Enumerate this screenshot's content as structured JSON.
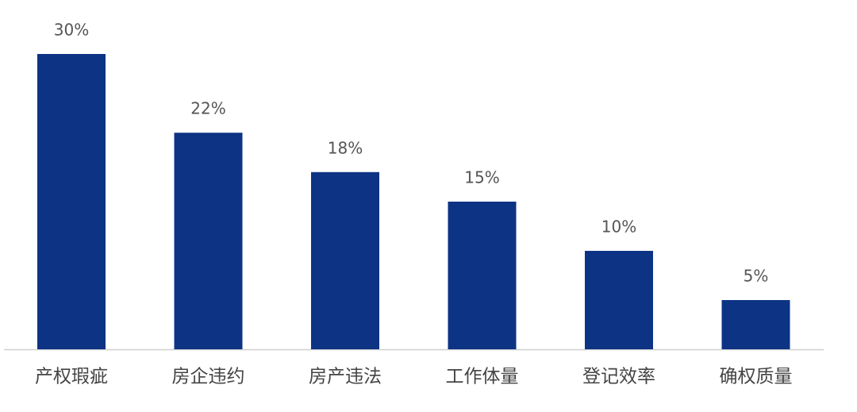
{
  "chart_data": {
    "type": "bar",
    "categories": [
      "产权瑕疵",
      "房企违约",
      "房产违法",
      "工作体量",
      "登记效率",
      "确权质量"
    ],
    "values": [
      30,
      22,
      18,
      15,
      10,
      5
    ],
    "value_labels": [
      "30%",
      "22%",
      "18%",
      "15%",
      "10%",
      "5%"
    ],
    "color": "#0d3384"
  }
}
